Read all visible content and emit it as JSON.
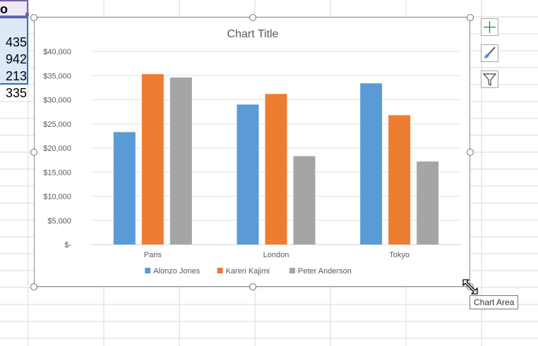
{
  "sheet": {
    "header_cell": "o",
    "cells": [
      "435",
      "942",
      "213",
      "335"
    ]
  },
  "chart_data": {
    "type": "bar",
    "title": "Chart Title",
    "categories": [
      "Paris",
      "London",
      "Tokyo"
    ],
    "series": [
      {
        "name": "Alonzo Jones",
        "color": "#5b9bd5",
        "values": [
          23300,
          29000,
          33400
        ]
      },
      {
        "name": "Karen Kajimi",
        "color": "#ed7d31",
        "values": [
          35300,
          31200,
          26800
        ]
      },
      {
        "name": "Peter Anderson",
        "color": "#a5a5a5",
        "values": [
          34600,
          18300,
          17200
        ]
      }
    ],
    "yticks": [
      "$-",
      "$5,000",
      "$10,000",
      "$15,000",
      "$20,000",
      "$25,000",
      "$30,000",
      "$35,000",
      "$40,000"
    ],
    "ylim": [
      0,
      40000
    ],
    "grid": true,
    "legend": "bottom"
  },
  "side_buttons": {
    "elements_icon": "plus-icon",
    "styles_icon": "brush-icon",
    "filters_icon": "filter-icon"
  },
  "tooltip": "Chart Area"
}
